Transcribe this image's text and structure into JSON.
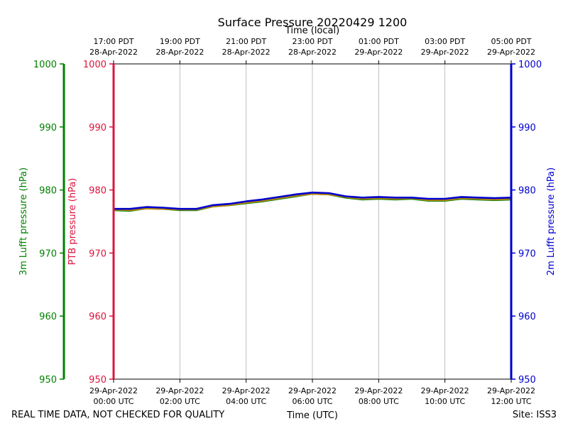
{
  "chart_data": {
    "type": "line",
    "title": "Surface Pressure 20220429 1200",
    "xlabel": "Time (UTC)",
    "xlabel_top": "Time (local)",
    "ylabel_3m": "3m Lufft pressure (hPa)",
    "ylabel_ptb": "PTB pressure (hPa)",
    "ylabel_2m": "2m Lufft pressure (hPa)",
    "footer_left": "REAL TIME DATA, NOT CHECKED FOR QUALITY",
    "footer_right": "Site: ISS3",
    "ylim": [
      950,
      1000
    ],
    "yticks": [
      950,
      960,
      970,
      980,
      990,
      1000
    ],
    "xlim_hours": [
      0,
      12
    ],
    "x_ticks_bottom": [
      {
        "h": 0,
        "l1": "29-Apr-2022",
        "l2": "00:00 UTC"
      },
      {
        "h": 2,
        "l1": "29-Apr-2022",
        "l2": "02:00 UTC"
      },
      {
        "h": 4,
        "l1": "29-Apr-2022",
        "l2": "04:00 UTC"
      },
      {
        "h": 6,
        "l1": "29-Apr-2022",
        "l2": "06:00 UTC"
      },
      {
        "h": 8,
        "l1": "29-Apr-2022",
        "l2": "08:00 UTC"
      },
      {
        "h": 10,
        "l1": "29-Apr-2022",
        "l2": "10:00 UTC"
      },
      {
        "h": 12,
        "l1": "29-Apr-2022",
        "l2": "12:00 UTC"
      }
    ],
    "x_ticks_top": [
      {
        "h": 0,
        "l1": "17:00 PDT",
        "l2": "28-Apr-2022"
      },
      {
        "h": 2,
        "l1": "19:00 PDT",
        "l2": "28-Apr-2022"
      },
      {
        "h": 4,
        "l1": "21:00 PDT",
        "l2": "28-Apr-2022"
      },
      {
        "h": 6,
        "l1": "23:00 PDT",
        "l2": "28-Apr-2022"
      },
      {
        "h": 8,
        "l1": "01:00 PDT",
        "l2": "29-Apr-2022"
      },
      {
        "h": 10,
        "l1": "03:00 PDT",
        "l2": "29-Apr-2022"
      },
      {
        "h": 12,
        "l1": "05:00 PDT",
        "l2": "29-Apr-2022"
      }
    ],
    "grid": true,
    "colors": {
      "lufft3m": "#008000",
      "ptb": "#dc143c",
      "lufft2m": "#0000cd",
      "ptb_line": "#b8860b"
    },
    "series": [
      {
        "key": "lufft3m",
        "x": [
          0,
          0.5,
          1,
          1.5,
          2,
          2.5,
          3,
          3.5,
          4,
          4.5,
          5,
          5.5,
          6,
          6.5,
          7,
          7.5,
          8,
          8.5,
          9,
          9.5,
          10,
          10.5,
          11,
          11.5,
          12
        ],
        "values": [
          976.8,
          976.7,
          977.1,
          977.0,
          976.8,
          976.8,
          977.4,
          977.6,
          977.9,
          978.2,
          978.6,
          979.0,
          979.4,
          979.3,
          978.8,
          978.5,
          978.6,
          978.5,
          978.6,
          978.3,
          978.3,
          978.6,
          978.5,
          978.4,
          978.5
        ]
      },
      {
        "key": "ptb",
        "x": [
          0,
          0.5,
          1,
          1.5,
          2,
          2.5,
          3,
          3.5,
          4,
          4.5,
          5,
          5.5,
          6,
          6.5,
          7,
          7.5,
          8,
          8.5,
          9,
          9.5,
          10,
          10.5,
          11,
          11.5,
          12
        ],
        "values": [
          976.9,
          976.8,
          977.1,
          977.0,
          976.9,
          976.9,
          977.4,
          977.6,
          978.0,
          978.3,
          978.7,
          979.1,
          979.4,
          979.3,
          978.9,
          978.6,
          978.7,
          978.6,
          978.7,
          978.4,
          978.4,
          978.7,
          978.6,
          978.5,
          978.6
        ]
      },
      {
        "key": "lufft2m",
        "x": [
          0,
          0.5,
          1,
          1.5,
          2,
          2.5,
          3,
          3.5,
          4,
          4.5,
          5,
          5.5,
          6,
          6.5,
          7,
          7.5,
          8,
          8.5,
          9,
          9.5,
          10,
          10.5,
          11,
          11.5,
          12
        ],
        "values": [
          977.0,
          977.0,
          977.3,
          977.2,
          977.0,
          977.0,
          977.6,
          977.8,
          978.2,
          978.5,
          978.9,
          979.3,
          979.6,
          979.5,
          979.0,
          978.8,
          978.9,
          978.8,
          978.8,
          978.6,
          978.6,
          978.9,
          978.8,
          978.7,
          978.8
        ]
      }
    ]
  }
}
